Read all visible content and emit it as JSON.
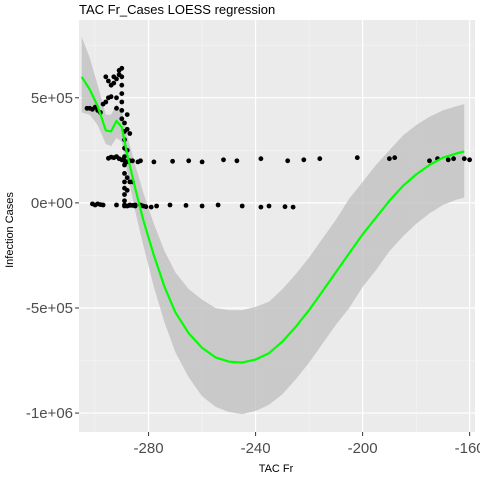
{
  "chart_data": {
    "type": "scatter",
    "title": "TAC Fr_Cases LOESS regression",
    "xlabel": "TAC Fr",
    "ylabel": "Infection Cases",
    "xlim": [
      -306,
      -158
    ],
    "ylim": [
      -1090000,
      870000
    ],
    "x_ticks": [
      -280,
      -240,
      -200,
      -160
    ],
    "x_tick_labels": [
      "-280",
      "-240",
      "-200",
      "-160"
    ],
    "y_ticks": [
      500000,
      0,
      -500000,
      -1000000
    ],
    "y_tick_labels": [
      "5e+05",
      "0e+00",
      "-5e+05",
      "-1e+06"
    ],
    "grid": true,
    "legend": "none",
    "colors": {
      "panel_background": "#ebebeb",
      "grid_major": "#ffffff",
      "grid_minor": "#f5f5f5",
      "points": "#000000",
      "loess_line": "#00ff00",
      "confidence_band": "#bebebe"
    },
    "points": [
      [
        -303,
        450000
      ],
      [
        -302,
        450000
      ],
      [
        -301,
        445000
      ],
      [
        -300,
        455000
      ],
      [
        -299,
        440000
      ],
      [
        -298,
        430000
      ],
      [
        -297,
        470000
      ],
      [
        -296,
        480000
      ],
      [
        -295,
        500000
      ],
      [
        -294,
        505000
      ],
      [
        -296,
        600000
      ],
      [
        -295,
        580000
      ],
      [
        -294,
        560000
      ],
      [
        -293,
        570000
      ],
      [
        -293,
        600000
      ],
      [
        -292,
        590000
      ],
      [
        -292,
        500000
      ],
      [
        -292,
        450000
      ],
      [
        -291,
        610000
      ],
      [
        -291,
        630000
      ],
      [
        -290,
        640000
      ],
      [
        -290,
        600000
      ],
      [
        -290,
        560000
      ],
      [
        -290,
        520000
      ],
      [
        -290,
        480000
      ],
      [
        -290,
        440000
      ],
      [
        -290,
        400000
      ],
      [
        -289,
        380000
      ],
      [
        -289,
        340000
      ],
      [
        -289,
        300000
      ],
      [
        -289,
        260000
      ],
      [
        -289,
        220000
      ],
      [
        -289,
        180000
      ],
      [
        -289,
        140000
      ],
      [
        -289,
        100000
      ],
      [
        -289,
        70000
      ],
      [
        -289,
        40000
      ],
      [
        -289,
        10000
      ],
      [
        -289,
        -10000
      ],
      [
        -288,
        420000
      ],
      [
        -288,
        350000
      ],
      [
        -288,
        250000
      ],
      [
        -288,
        120000
      ],
      [
        -288,
        60000
      ],
      [
        -288,
        -15000
      ],
      [
        -287,
        330000
      ],
      [
        -287,
        200000
      ],
      [
        -287,
        100000
      ],
      [
        -287,
        -10000
      ],
      [
        -286,
        200000
      ],
      [
        -286,
        100000
      ],
      [
        -286,
        -12000
      ],
      [
        -285,
        -15000
      ],
      [
        -284,
        195000
      ],
      [
        -283,
        -10000
      ],
      [
        -291,
        210000
      ],
      [
        -292,
        220000
      ],
      [
        -293,
        215000
      ],
      [
        -294,
        218000
      ],
      [
        -295,
        212000
      ],
      [
        -290,
        205000
      ],
      [
        -289,
        200000
      ],
      [
        -288,
        195000
      ],
      [
        -283,
        200000
      ],
      [
        -278,
        195000
      ],
      [
        -271,
        198000
      ],
      [
        -265,
        200000
      ],
      [
        -260,
        195000
      ],
      [
        -252,
        205000
      ],
      [
        -247,
        200000
      ],
      [
        -238,
        210000
      ],
      [
        -228,
        200000
      ],
      [
        -222,
        205000
      ],
      [
        -216,
        210000
      ],
      [
        -202,
        215000
      ],
      [
        -190,
        210000
      ],
      [
        -188,
        215000
      ],
      [
        -175,
        200000
      ],
      [
        -172,
        210000
      ],
      [
        -168,
        205000
      ],
      [
        -166,
        210000
      ],
      [
        -162,
        210000
      ],
      [
        -160,
        205000
      ],
      [
        -301,
        -5000
      ],
      [
        -300,
        -10000
      ],
      [
        -299,
        -5000
      ],
      [
        -298,
        -8000
      ],
      [
        -297,
        -10000
      ],
      [
        -292,
        -10000
      ],
      [
        -289,
        -15000
      ],
      [
        -287,
        -12000
      ],
      [
        -285,
        -10000
      ],
      [
        -282,
        -15000
      ],
      [
        -281,
        -18000
      ],
      [
        -279,
        -20000
      ],
      [
        -277,
        -15000
      ],
      [
        -272,
        -10000
      ],
      [
        -266,
        -12000
      ],
      [
        -260,
        -15000
      ],
      [
        -254,
        -10000
      ],
      [
        -245,
        -15000
      ],
      [
        -238,
        -20000
      ],
      [
        -235,
        -15000
      ],
      [
        -229,
        -18000
      ],
      [
        -226,
        -20000
      ]
    ],
    "loess_fit": [
      [
        -305,
        600000
      ],
      [
        -302,
        540000
      ],
      [
        -299,
        460000
      ],
      [
        -296,
        345000
      ],
      [
        -294,
        340000
      ],
      [
        -292,
        390000
      ],
      [
        -290,
        360000
      ],
      [
        -288,
        230000
      ],
      [
        -285,
        70000
      ],
      [
        -282,
        -80000
      ],
      [
        -278,
        -250000
      ],
      [
        -274,
        -400000
      ],
      [
        -270,
        -520000
      ],
      [
        -265,
        -620000
      ],
      [
        -260,
        -690000
      ],
      [
        -255,
        -735000
      ],
      [
        -250,
        -755000
      ],
      [
        -245,
        -760000
      ],
      [
        -240,
        -745000
      ],
      [
        -235,
        -715000
      ],
      [
        -230,
        -660000
      ],
      [
        -225,
        -590000
      ],
      [
        -220,
        -510000
      ],
      [
        -215,
        -420000
      ],
      [
        -210,
        -330000
      ],
      [
        -205,
        -240000
      ],
      [
        -200,
        -150000
      ],
      [
        -195,
        -70000
      ],
      [
        -190,
        10000
      ],
      [
        -185,
        80000
      ],
      [
        -180,
        135000
      ],
      [
        -175,
        180000
      ],
      [
        -170,
        215000
      ],
      [
        -165,
        235000
      ],
      [
        -162,
        245000
      ]
    ],
    "confidence_band": [
      [
        -305,
        790000,
        430000
      ],
      [
        -302,
        690000,
        420000
      ],
      [
        -299,
        560000,
        370000
      ],
      [
        -296,
        420000,
        280000
      ],
      [
        -294,
        420000,
        270000
      ],
      [
        -292,
        470000,
        310000
      ],
      [
        -290,
        440000,
        290000
      ],
      [
        -288,
        320000,
        150000
      ],
      [
        -285,
        180000,
        -40000
      ],
      [
        -282,
        50000,
        -200000
      ],
      [
        -278,
        -100000,
        -400000
      ],
      [
        -274,
        -230000,
        -570000
      ],
      [
        -270,
        -330000,
        -710000
      ],
      [
        -265,
        -410000,
        -830000
      ],
      [
        -260,
        -460000,
        -920000
      ],
      [
        -255,
        -500000,
        -970000
      ],
      [
        -250,
        -510000,
        -995000
      ],
      [
        -245,
        -510000,
        -1005000
      ],
      [
        -240,
        -495000,
        -990000
      ],
      [
        -235,
        -470000,
        -960000
      ],
      [
        -230,
        -410000,
        -910000
      ],
      [
        -225,
        -340000,
        -840000
      ],
      [
        -220,
        -260000,
        -760000
      ],
      [
        -215,
        -170000,
        -670000
      ],
      [
        -210,
        -80000,
        -580000
      ],
      [
        -205,
        20000,
        -500000
      ],
      [
        -200,
        100000,
        -400000
      ],
      [
        -195,
        180000,
        -320000
      ],
      [
        -190,
        250000,
        -230000
      ],
      [
        -185,
        320000,
        -160000
      ],
      [
        -180,
        370000,
        -100000
      ],
      [
        -175,
        410000,
        -50000
      ],
      [
        -170,
        440000,
        -10000
      ],
      [
        -165,
        460000,
        15000
      ],
      [
        -162,
        470000,
        25000
      ]
    ]
  }
}
